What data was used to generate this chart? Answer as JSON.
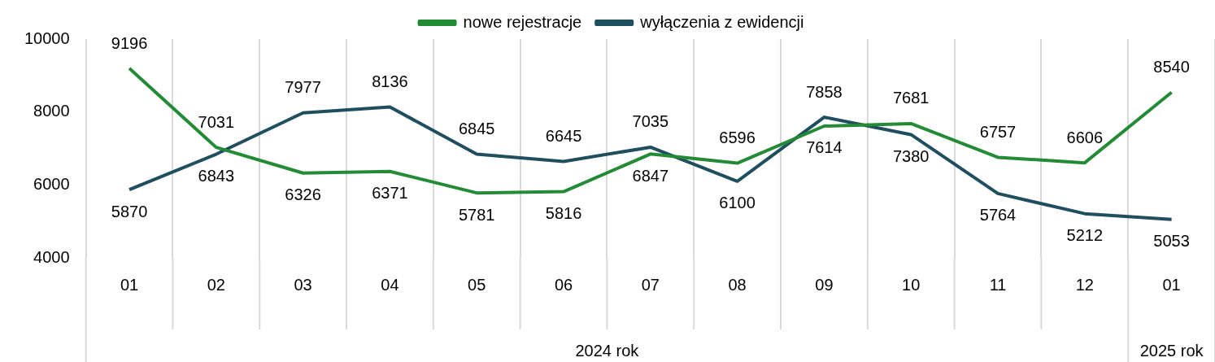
{
  "chart_data": {
    "type": "line",
    "categories": [
      "01",
      "02",
      "03",
      "04",
      "05",
      "06",
      "07",
      "08",
      "09",
      "10",
      "11",
      "12",
      "01"
    ],
    "series": [
      {
        "name": "nowe rejestracje",
        "color": "#238b35",
        "values": [
          9196,
          7031,
          6326,
          6371,
          5781,
          5816,
          6847,
          6596,
          7614,
          7681,
          6757,
          6606,
          8540
        ]
      },
      {
        "name": "wyłączenia z ewidencji",
        "color": "#1f4e5f",
        "values": [
          5870,
          6843,
          7977,
          8136,
          6845,
          6645,
          7035,
          6100,
          7858,
          7380,
          5764,
          5212,
          5053
        ]
      }
    ],
    "ylim": [
      4000,
      10000
    ],
    "yticks": [
      4000,
      6000,
      8000,
      10000
    ],
    "grid": "x",
    "legend": "top",
    "marker": "none",
    "line_style": "solid",
    "data_labels": true,
    "annotations": [
      "2024 rok",
      "2025 rok"
    ]
  }
}
